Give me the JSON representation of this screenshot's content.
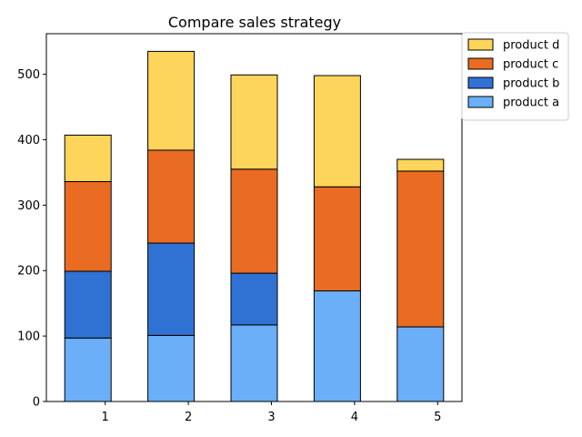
{
  "chart_data": {
    "type": "bar",
    "stacked": true,
    "title": "Compare sales strategy",
    "xlabel": "",
    "ylabel": "",
    "categories": [
      "1",
      "2",
      "3",
      "4",
      "5"
    ],
    "series": [
      {
        "name": "product a",
        "color": "#6aaff7",
        "values": [
          97,
          101,
          117,
          169,
          114
        ]
      },
      {
        "name": "product b",
        "color": "#2f72d4",
        "values": [
          102,
          141,
          79,
          0,
          0
        ]
      },
      {
        "name": "product c",
        "color": "#ea6b22",
        "values": [
          137,
          142,
          159,
          159,
          238
        ]
      },
      {
        "name": "product d",
        "color": "#fed55b",
        "values": [
          71,
          151,
          144,
          170,
          18
        ]
      }
    ],
    "yticks": [
      0,
      100,
      200,
      300,
      400,
      500
    ],
    "ylim": [
      0,
      562
    ],
    "grid": false,
    "legend_position": "upper-right-outside",
    "legend_order": [
      "product d",
      "product c",
      "product b",
      "product a"
    ]
  }
}
